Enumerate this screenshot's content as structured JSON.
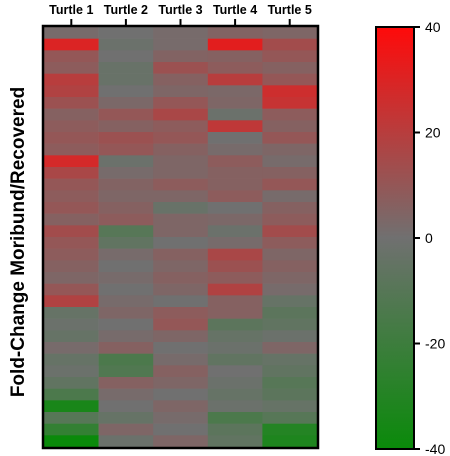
{
  "chart_data": {
    "type": "heatmap",
    "title": "",
    "ylabel": "Fold-Change Moribund/Recovered",
    "columns": [
      "Turtle 1",
      "Turtle 2",
      "Turtle 3",
      "Turtle 4",
      "Turtle 5"
    ],
    "colorbar": {
      "min": -40,
      "max": 40,
      "ticks": [
        40,
        20,
        0,
        -20,
        -40
      ],
      "tick_labels": [
        "40",
        "20",
        "0",
        "-20",
        "-40"
      ],
      "colors": {
        "low": "#0a8a0a",
        "mid": "#707070",
        "high": "#ff0a0a"
      }
    },
    "values": [
      [
        2,
        0,
        2,
        5,
        4
      ],
      [
        30,
        -2,
        2,
        32,
        14
      ],
      [
        10,
        0,
        5,
        6,
        10
      ],
      [
        8,
        -3,
        12,
        8,
        6
      ],
      [
        20,
        -3,
        6,
        20,
        10
      ],
      [
        18,
        0,
        4,
        3,
        26
      ],
      [
        12,
        3,
        10,
        4,
        24
      ],
      [
        6,
        10,
        16,
        -2,
        8
      ],
      [
        8,
        6,
        8,
        22,
        6
      ],
      [
        10,
        12,
        10,
        0,
        10
      ],
      [
        8,
        10,
        6,
        2,
        4
      ],
      [
        28,
        -2,
        4,
        8,
        2
      ],
      [
        16,
        2,
        4,
        6,
        6
      ],
      [
        10,
        5,
        8,
        6,
        10
      ],
      [
        8,
        4,
        4,
        8,
        2
      ],
      [
        10,
        6,
        -3,
        0,
        6
      ],
      [
        6,
        8,
        4,
        3,
        8
      ],
      [
        14,
        -10,
        4,
        -2,
        14
      ],
      [
        10,
        -6,
        0,
        2,
        8
      ],
      [
        8,
        2,
        6,
        16,
        4
      ],
      [
        6,
        0,
        4,
        12,
        6
      ],
      [
        4,
        2,
        6,
        8,
        4
      ],
      [
        10,
        0,
        4,
        18,
        2
      ],
      [
        18,
        2,
        0,
        6,
        -4
      ],
      [
        -4,
        4,
        8,
        6,
        -8
      ],
      [
        -2,
        0,
        10,
        -8,
        -6
      ],
      [
        -4,
        2,
        4,
        -4,
        -2
      ],
      [
        2,
        6,
        0,
        -2,
        4
      ],
      [
        -4,
        -14,
        2,
        -6,
        -4
      ],
      [
        -2,
        -12,
        6,
        0,
        -6
      ],
      [
        -6,
        6,
        4,
        -2,
        -10
      ],
      [
        -14,
        2,
        0,
        -4,
        -8
      ],
      [
        -34,
        0,
        4,
        -2,
        -4
      ],
      [
        -10,
        -4,
        2,
        -14,
        -10
      ],
      [
        -24,
        4,
        0,
        -8,
        -30
      ],
      [
        -40,
        -2,
        4,
        -6,
        -32
      ]
    ]
  }
}
